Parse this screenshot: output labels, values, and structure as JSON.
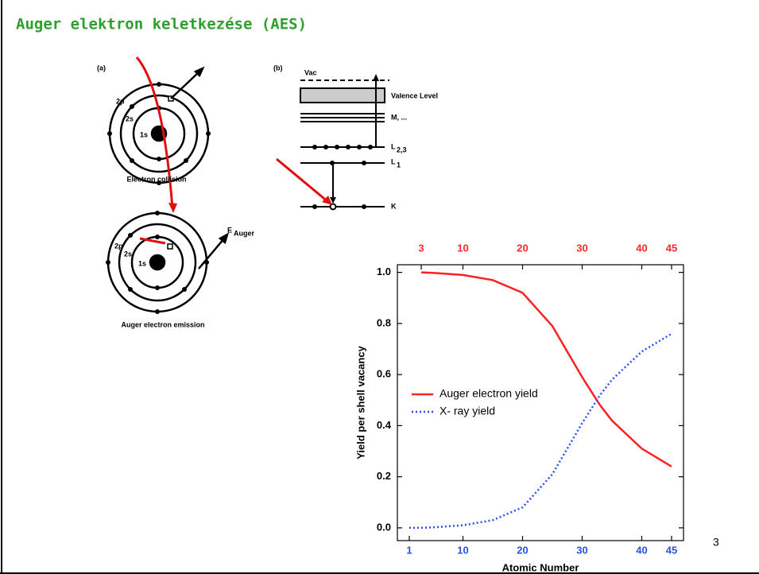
{
  "slide_title": "Auger elektron keletkezése (AES)",
  "page_number": "3",
  "diagram_a": {
    "label": "(a)",
    "shell_2p": "2p",
    "shell_2s": "2s",
    "shell_1s": "1s",
    "caption_collision": "Electron collision",
    "caption_emission": "Auger electron emission",
    "energy_symbol": "E",
    "energy_subscript": "Auger"
  },
  "diagram_b": {
    "label": "(b)",
    "vac": "Vac",
    "valence": "Valence Level",
    "m_levels": "M, ...",
    "l23": "L",
    "l23_sub": "2,3",
    "l1": "L",
    "l1_sub": "1",
    "k": "K"
  },
  "chart_data": {
    "type": "line",
    "x_label": "Atomic Number",
    "y_label": "Yield per shell vacancy",
    "x": [
      1,
      3,
      5,
      10,
      15,
      20,
      25,
      30,
      33,
      35,
      40,
      45
    ],
    "series": [
      {
        "name": "Auger electron yield",
        "color": "#ff2020",
        "style": "solid",
        "values": [
          null,
          1.0,
          0.998,
          0.99,
          0.97,
          0.92,
          0.79,
          0.59,
          0.48,
          0.42,
          0.31,
          0.24
        ]
      },
      {
        "name": "X- ray yield",
        "color": "#2a4dff",
        "style": "dotted",
        "values": [
          0,
          0,
          0.002,
          0.01,
          0.03,
          0.08,
          0.21,
          0.41,
          0.52,
          0.58,
          0.69,
          0.76
        ]
      }
    ],
    "xlim": [
      -1,
      47
    ],
    "ylim": [
      -0.05,
      1.03
    ],
    "xticks": [
      1,
      10,
      20,
      30,
      40,
      45
    ],
    "xtick_color": "#2a52e0",
    "x2ticks": [
      3,
      10,
      20,
      30,
      40,
      45
    ],
    "x2tick_color": "#ff2a2a",
    "yticks": [
      {
        "value": 0,
        "label": "0.0"
      },
      0.2,
      0.4,
      0.6,
      0.8,
      {
        "value": 1,
        "label": "1.0"
      }
    ]
  }
}
